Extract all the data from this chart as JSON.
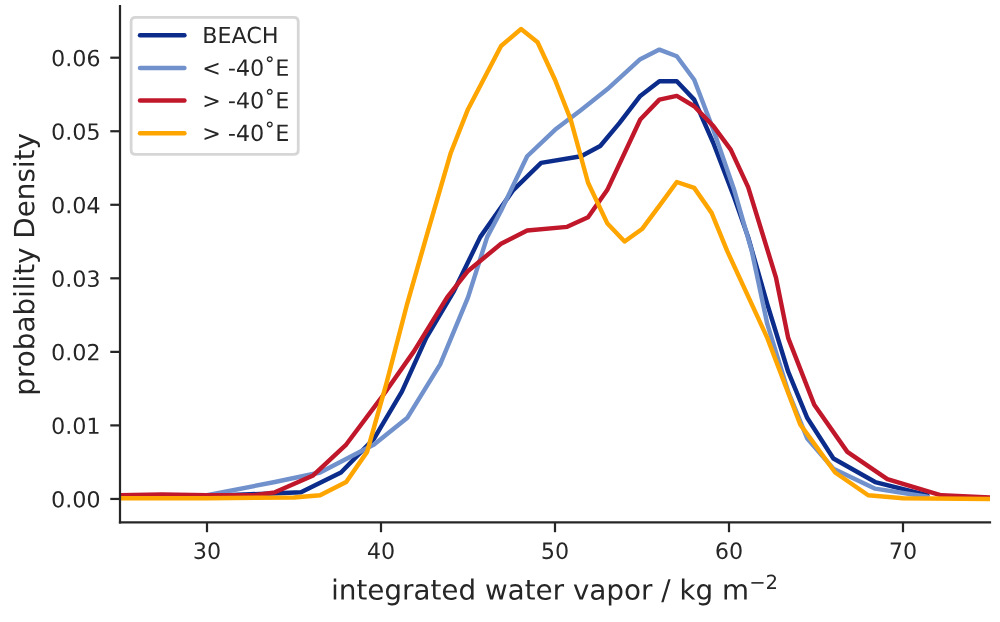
{
  "chart_data": {
    "type": "line",
    "xlabel": "integrated water vapor / kg m$^{−2}$",
    "ylabel": "probability Density",
    "xlim": [
      25,
      75
    ],
    "xticks": [
      30,
      40,
      50,
      60,
      70
    ],
    "ylim": [
      -0.0032,
      0.067
    ],
    "yticks": [
      {
        "value": 0,
        "label": "0.00"
      },
      {
        "value": 0.01,
        "label": "0.01"
      },
      {
        "value": 0.02,
        "label": "0.02"
      },
      {
        "value": 0.03,
        "label": "0.03"
      },
      {
        "value": 0.04,
        "label": "0.04"
      },
      {
        "value": 0.05,
        "label": "0.05"
      },
      {
        "value": 0.06,
        "label": "0.06"
      }
    ],
    "grid": false,
    "legend": "top left",
    "marker": "none",
    "line_style": "solid",
    "series": [
      {
        "name": "BEACH",
        "color": "#0b2c8a",
        "x": [
          25,
          30,
          35.4,
          37.7,
          39.6,
          41.2,
          42.6,
          44.2,
          45.7,
          47.6,
          49.2,
          51.5,
          52.6,
          53.7,
          54.9,
          56.0,
          57.0,
          58.0,
          59.1,
          60.3,
          61.1,
          62.2,
          63.4,
          64.5,
          66.0,
          68.4,
          71.4
        ],
        "values": [
          0.0003,
          0.0004,
          0.0009,
          0.0036,
          0.0082,
          0.0146,
          0.0219,
          0.0283,
          0.0356,
          0.042,
          0.0457,
          0.0466,
          0.048,
          0.0511,
          0.0548,
          0.0568,
          0.0568,
          0.0543,
          0.0484,
          0.041,
          0.0356,
          0.0265,
          0.0173,
          0.011,
          0.0055,
          0.0023,
          0.0005
        ]
      },
      {
        "name": "< -40˚E",
        "color": "#7191cc",
        "x": [
          25,
          30,
          33.9,
          36.5,
          39.6,
          41.5,
          43.4,
          45.0,
          46.1,
          46.9,
          48.4,
          50.0,
          51.5,
          53.0,
          54.9,
          56.0,
          57.0,
          58.0,
          59.1,
          60.3,
          61.3,
          62.2,
          63.4,
          64.5,
          66.0,
          68.4,
          71.4
        ],
        "values": [
          0.0002,
          0.0005,
          0.0023,
          0.0036,
          0.0074,
          0.011,
          0.0183,
          0.0274,
          0.0356,
          0.0392,
          0.0466,
          0.0502,
          0.0529,
          0.0557,
          0.0598,
          0.0611,
          0.0602,
          0.057,
          0.0502,
          0.042,
          0.0338,
          0.0238,
          0.0146,
          0.0082,
          0.0041,
          0.0014,
          0.0003
        ]
      },
      {
        "name": "> -40˚E",
        "color": "#c0172b",
        "x": [
          25,
          27.4,
          30,
          32.7,
          33.9,
          36.1,
          38.0,
          40.0,
          41.9,
          43.8,
          45.0,
          46.9,
          48.4,
          50.7,
          51.9,
          53.0,
          54.9,
          56.0,
          57.0,
          58.0,
          59.1,
          60.1,
          61.1,
          62.7,
          63.4,
          64.9,
          66.8,
          69.1,
          72.2,
          75
        ],
        "values": [
          0.0005,
          0.0006,
          0.0005,
          0.0005,
          0.0009,
          0.0032,
          0.0074,
          0.0137,
          0.0201,
          0.0274,
          0.031,
          0.0347,
          0.0365,
          0.037,
          0.0383,
          0.042,
          0.0516,
          0.0543,
          0.0548,
          0.0534,
          0.0507,
          0.0475,
          0.0424,
          0.0301,
          0.0219,
          0.0128,
          0.0064,
          0.0027,
          0.0005,
          0.0002
        ]
      },
      {
        "name": "> -40˚E",
        "color": "#ffa500",
        "x": [
          25,
          30,
          35,
          36.5,
          38.0,
          39.2,
          40.3,
          41.5,
          42.6,
          44.0,
          45.0,
          46.9,
          48.05,
          49.0,
          50.0,
          50.9,
          51.9,
          53.0,
          54.0,
          55.0,
          56.1,
          57.0,
          58.0,
          59.0,
          59.9,
          62.2,
          64.1,
          66.1,
          68.0,
          70,
          75
        ],
        "values": [
          0.0001,
          0.0001,
          0.0002,
          0.0005,
          0.0023,
          0.0064,
          0.0156,
          0.0265,
          0.0356,
          0.047,
          0.053,
          0.0616,
          0.0639,
          0.0621,
          0.057,
          0.0516,
          0.043,
          0.0375,
          0.035,
          0.0367,
          0.0402,
          0.0431,
          0.0423,
          0.0389,
          0.0337,
          0.0219,
          0.0101,
          0.0036,
          0.0005,
          0.0001,
          0.0
        ]
      }
    ]
  }
}
